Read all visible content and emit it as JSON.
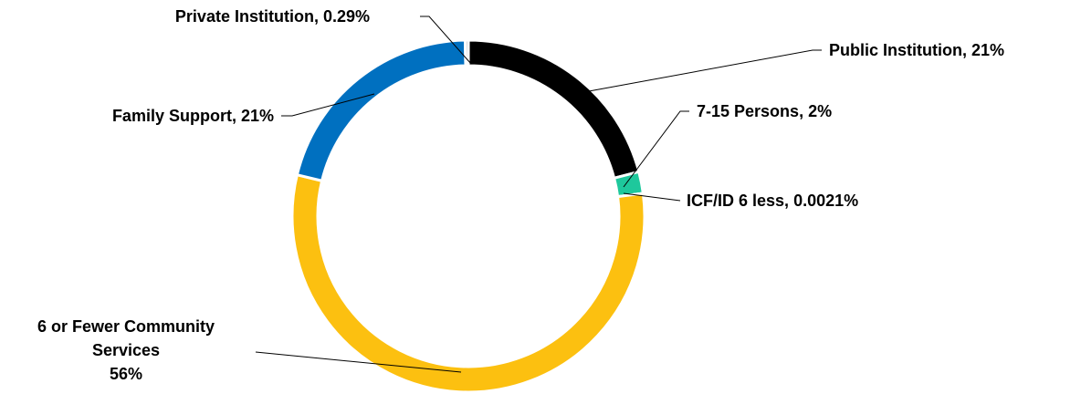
{
  "chart_data": {
    "type": "donut",
    "categories": [
      "Public Institution",
      "7-15 Persons",
      "ICF/ID 6 less",
      "6 or Fewer Community Services",
      "Family Support",
      "Private Institution"
    ],
    "values": [
      21,
      2,
      0.0021,
      56,
      21,
      0.29
    ],
    "value_labels": [
      "21%",
      "2%",
      "0.0021%",
      "56%",
      "21%",
      "0.29%"
    ],
    "colors": [
      "#000000",
      "#1ec89c",
      "#7f7f7f",
      "#fcc010",
      "#0070c0",
      "#a5a5a5"
    ]
  }
}
